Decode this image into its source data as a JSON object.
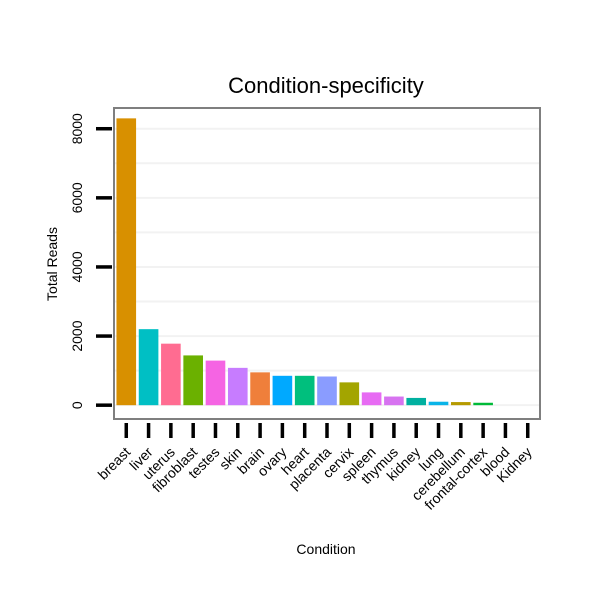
{
  "chart_data": {
    "type": "bar",
    "title": "Condition-specificity",
    "xlabel": "Condition",
    "ylabel": "Total Reads",
    "ylim": [
      -400,
      8600
    ],
    "yticks": [
      0,
      2000,
      4000,
      6000,
      8000
    ],
    "grid": true,
    "legend": "none",
    "categories": [
      "breast",
      "liver",
      "uterus",
      "fibroblast",
      "testes",
      "skin",
      "brain",
      "ovary",
      "heart",
      "placenta",
      "cervix",
      "spleen",
      "thymus",
      "kidney",
      "lung",
      "cerebellum",
      "frontal-cortex",
      "blood",
      "Kidney"
    ],
    "values": [
      8300,
      2200,
      1780,
      1440,
      1290,
      1080,
      950,
      850,
      850,
      830,
      660,
      370,
      250,
      210,
      100,
      90,
      70,
      0,
      0
    ],
    "colors": [
      "#D89000",
      "#00BFC4",
      "#FF6C91",
      "#6BB100",
      "#F564E3",
      "#C77CFF",
      "#EF7F3B",
      "#00A9FF",
      "#00BF7D",
      "#8A9CFF",
      "#A3A500",
      "#E76BF3",
      "#D773F0",
      "#00B0A0",
      "#0AB4E8",
      "#B59A00",
      "#00BA38",
      "#999999",
      "#999999"
    ]
  }
}
